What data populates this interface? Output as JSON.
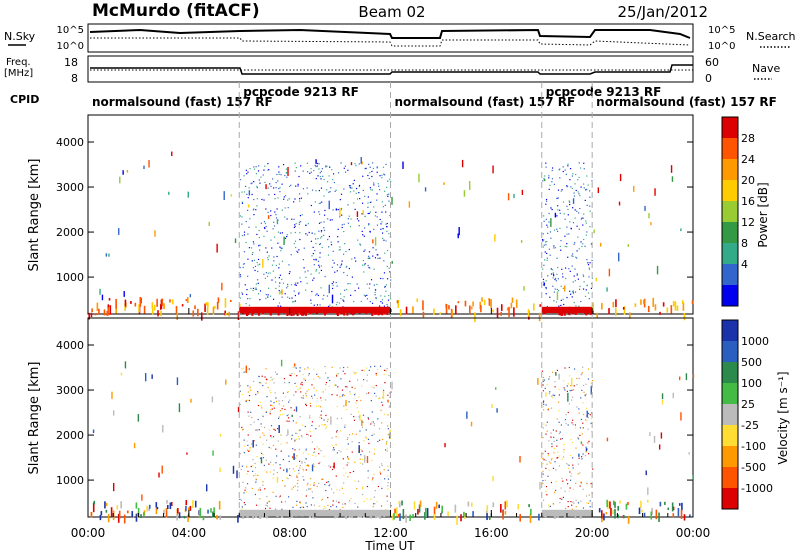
{
  "header": {
    "station": "McMurdo (fitACF)",
    "beam": "Beam 02",
    "date": "25/Jan/2012"
  },
  "top_panels": {
    "nsky_label": "N.Sky",
    "nsearch_label": "N.Search",
    "noise_ticks_left": [
      "10^5",
      "10^0"
    ],
    "noise_ticks_right": [
      "10^5",
      "10^0"
    ],
    "freq_label_1": "Freq.",
    "freq_label_2": "[MHz]",
    "freq_ticks": [
      "18",
      "8"
    ],
    "nave_label": "Nave",
    "nave_ticks": [
      "60",
      "0"
    ],
    "cpid_label": "CPID",
    "cpid_segments": [
      {
        "text": "normalsound (fast) 157 RF",
        "start_h": 0.0,
        "end_h": 6.0
      },
      {
        "text": "pcpcode 9213 RF",
        "start_h": 6.0,
        "end_h": 12.0
      },
      {
        "text": "normalsound (fast) 157 RF",
        "start_h": 12.0,
        "end_h": 18.0
      },
      {
        "text": "pcpcode 9213 RF",
        "start_h": 18.0,
        "end_h": 20.0
      },
      {
        "text": "normalsound (fast) 157 RF",
        "start_h": 20.0,
        "end_h": 24.0
      }
    ]
  },
  "chart_data": [
    {
      "type": "heatmap",
      "name": "power",
      "ylabel": "Slant Range [km]",
      "xlim_hours": [
        0,
        24
      ],
      "ylim": [
        180,
        4600
      ],
      "yticks": [
        1000,
        2000,
        3000,
        4000
      ],
      "colorbar": {
        "label": "Power [dB]",
        "ticks": [
          "28",
          "24",
          "20",
          "16",
          "12",
          "8",
          "4"
        ],
        "colors": [
          "#dd0000",
          "#ff5500",
          "#ff9900",
          "#ffcc00",
          "#99cc33",
          "#339944",
          "#33aa88",
          "#3366cc",
          "#0000ee"
        ]
      },
      "ground_scatter_band_km": [
        200,
        340
      ],
      "active_intervals_h": [
        [
          6,
          12
        ],
        [
          18,
          20
        ]
      ]
    },
    {
      "type": "heatmap",
      "name": "velocity",
      "ylabel": "Slant Range [km]",
      "xlim_hours": [
        0,
        24
      ],
      "ylim": [
        180,
        4600
      ],
      "yticks": [
        1000,
        2000,
        3000,
        4000
      ],
      "colorbar": {
        "label": "Velocity [m s⁻¹]",
        "ticks": [
          "1000",
          "500",
          "100",
          "25",
          "-25",
          "-100",
          "-500",
          "-1000"
        ],
        "colors": [
          "#1a33aa",
          "#2a5fbf",
          "#2c8a4c",
          "#44bb44",
          "#bbbbbb",
          "#ffdd33",
          "#ff9900",
          "#ff5500",
          "#dd0000"
        ]
      },
      "ground_scatter_band_km": [
        200,
        340
      ]
    }
  ],
  "time_axis": {
    "label": "Time UT",
    "ticks": [
      "00:00",
      "04:00",
      "08:00",
      "12:00",
      "16:00",
      "20:00",
      "00:00"
    ],
    "tick_hours": [
      0,
      4,
      8,
      12,
      16,
      20,
      24
    ]
  }
}
